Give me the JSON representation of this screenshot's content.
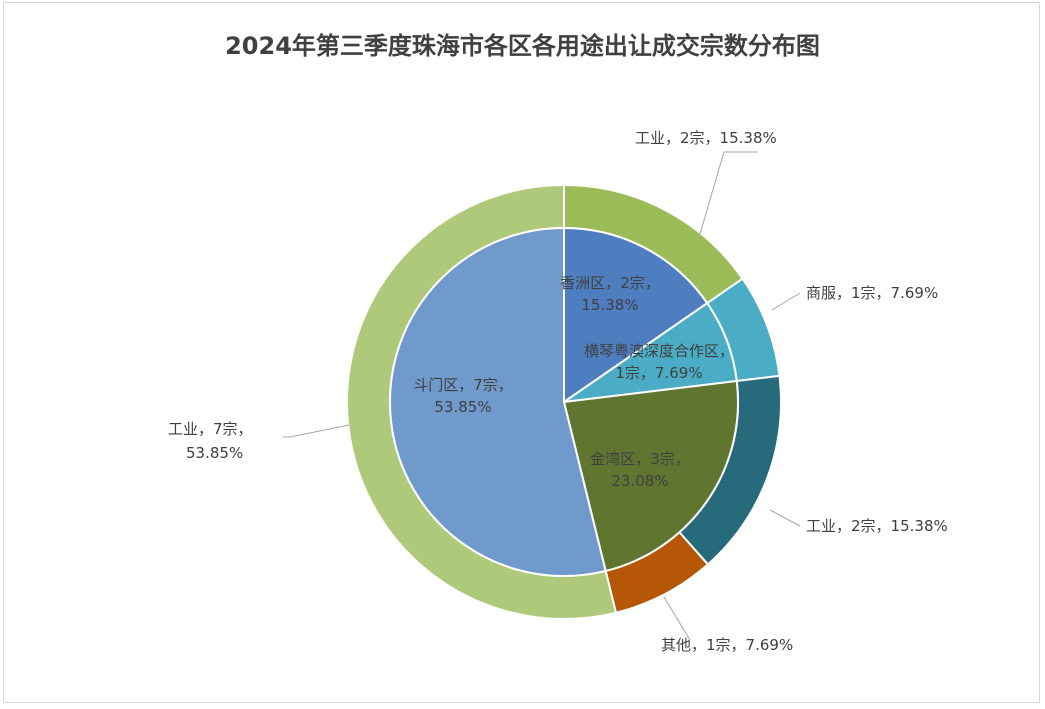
{
  "chart_data": {
    "type": "pie",
    "subtype": "nested-doughnut",
    "title": "2024年第三季度珠海市各区各用途出让成交宗数分布图",
    "inner_ring": {
      "slices": [
        {
          "name": "香洲区",
          "value": 2,
          "percent": "15.38%",
          "color": "#4e7ec0",
          "label_line1": "香洲区，2宗，",
          "label_line2": "15.38%"
        },
        {
          "name": "横琴粤澳深度合作区",
          "value": 1,
          "percent": "7.69%",
          "color": "#4bacc6",
          "label_line1": "横琴粤澳深度合作区，",
          "label_line2": "1宗，7.69%"
        },
        {
          "name": "金湾区",
          "value": 3,
          "percent": "23.08%",
          "color": "#5f7530",
          "label_line1": "金湾区，3宗，",
          "label_line2": "23.08%"
        },
        {
          "name": "斗门区",
          "value": 7,
          "percent": "53.85%",
          "color": "#7099cc",
          "label_line1": "斗门区，7宗，",
          "label_line2": "53.85%"
        }
      ]
    },
    "outer_ring": {
      "slices": [
        {
          "name": "工业",
          "value": 2,
          "percent": "15.38%",
          "color": "#9bbb59",
          "label": "工业，2宗，15.38%"
        },
        {
          "name": "商服",
          "value": 1,
          "percent": "7.69%",
          "color": "#4bacc6",
          "label": "商服，1宗，7.69%"
        },
        {
          "name": "工业",
          "value": 2,
          "percent": "15.38%",
          "color": "#276a7c",
          "label": "工业，2宗，15.38%"
        },
        {
          "name": "其他",
          "value": 1,
          "percent": "7.69%",
          "color": "#b65708",
          "label": "其他，1宗，7.69%"
        },
        {
          "name": "工业",
          "value": 7,
          "percent": "53.85%",
          "color": "#afc97a",
          "label_line1": "工业，7宗，",
          "label_line2": "53.85%"
        }
      ]
    }
  }
}
